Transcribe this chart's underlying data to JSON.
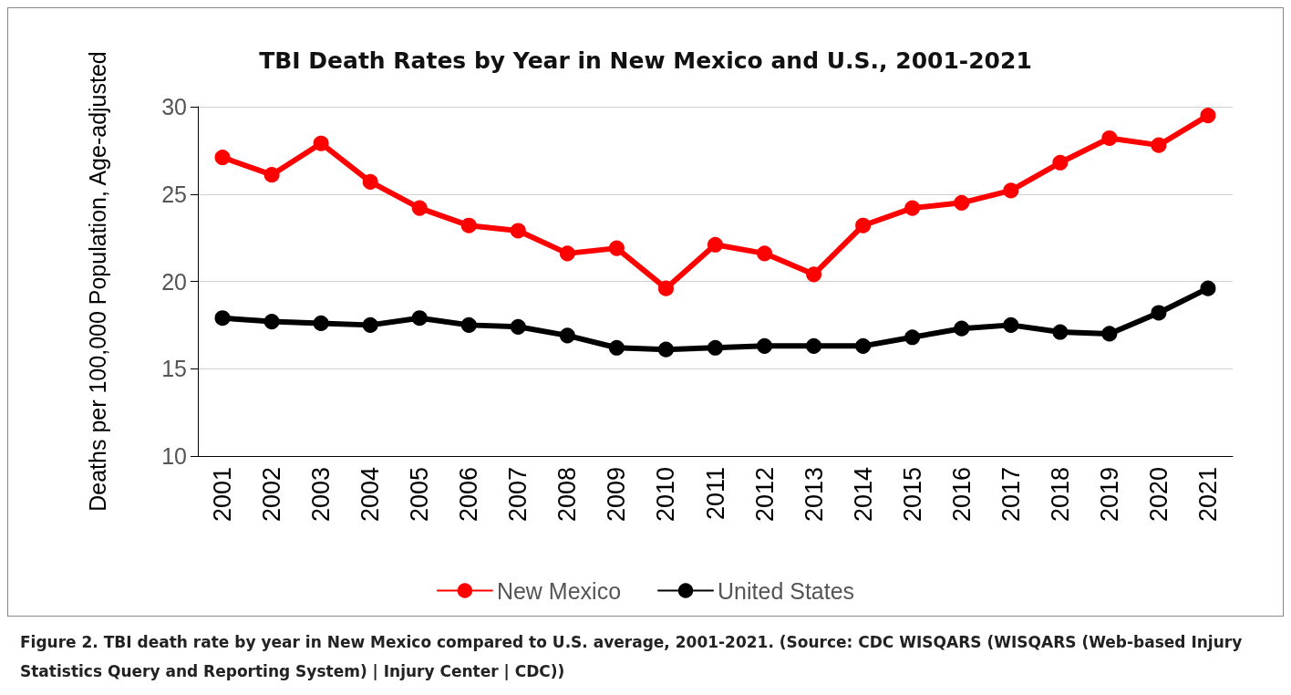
{
  "chart_data": {
    "type": "line",
    "title": "TBI Death Rates by Year in New Mexico and U.S., 2001-2021",
    "ylabel": "Deaths per 100,000 Population, Age-adjusted",
    "categories": [
      "2001",
      "2002",
      "2003",
      "2004",
      "2005",
      "2006",
      "2007",
      "2008",
      "2009",
      "2010",
      "2011",
      "2012",
      "2013",
      "2014",
      "2015",
      "2016",
      "2017",
      "2018",
      "2019",
      "2020",
      "2021"
    ],
    "series": [
      {
        "name": "New Mexico",
        "color": "#ff0000",
        "values": [
          27.1,
          26.1,
          27.9,
          25.7,
          24.2,
          23.2,
          22.9,
          21.6,
          21.9,
          19.6,
          22.1,
          21.6,
          20.4,
          23.2,
          24.2,
          24.5,
          25.2,
          26.8,
          28.2,
          27.8,
          29.5
        ]
      },
      {
        "name": "United States",
        "color": "#000000",
        "values": [
          17.9,
          17.7,
          17.6,
          17.5,
          17.9,
          17.5,
          17.4,
          16.9,
          16.2,
          16.1,
          16.2,
          16.3,
          16.3,
          16.3,
          16.8,
          17.3,
          17.5,
          17.1,
          17.0,
          18.2,
          19.6
        ]
      }
    ],
    "ylim": [
      10,
      30
    ],
    "yticks": [
      10,
      15,
      20,
      25,
      30
    ],
    "grid": "y",
    "legend": "bottom",
    "marker": "circle",
    "line_style": "solid",
    "annotations": [
      "Figure 2. TBI death rate by year in New Mexico compared to U.S. average, 2001-2021. (Source: CDC WISQARS (WISQARS (Web-based Injury Statistics Query and Reporting System) | Injury Center | CDC))"
    ]
  }
}
